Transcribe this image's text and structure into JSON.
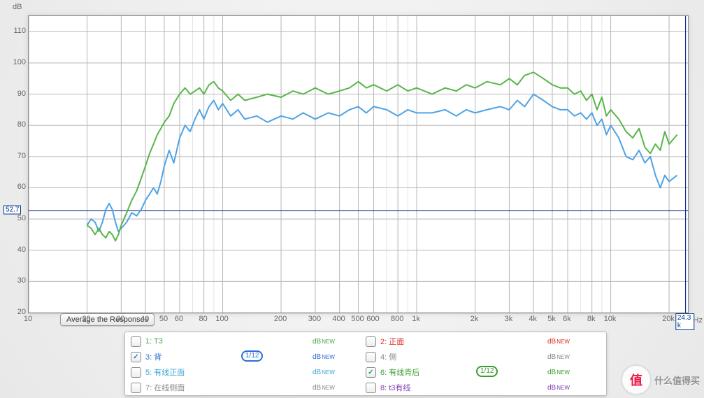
{
  "chart": {
    "type": "line",
    "y_unit": "dB",
    "x_unit": "k Hz",
    "x_scale": "log",
    "xlim_hz": [
      10,
      25000
    ],
    "ylim_db": [
      20,
      115
    ],
    "y_ticks": [
      20,
      30,
      40,
      50,
      60,
      70,
      80,
      90,
      100,
      110
    ],
    "x_ticks": [
      {
        "hz": 10,
        "label": "10"
      },
      {
        "hz": 20,
        "label": "20"
      },
      {
        "hz": 30,
        "label": "30"
      },
      {
        "hz": 40,
        "label": "40"
      },
      {
        "hz": 50,
        "label": "50"
      },
      {
        "hz": 60,
        "label": "60"
      },
      {
        "hz": 80,
        "label": "80"
      },
      {
        "hz": 100,
        "label": "100"
      },
      {
        "hz": 200,
        "label": "200"
      },
      {
        "hz": 300,
        "label": "300"
      },
      {
        "hz": 400,
        "label": "400"
      },
      {
        "hz": 500,
        "label": "500"
      },
      {
        "hz": 600,
        "label": "600"
      },
      {
        "hz": 800,
        "label": "800"
      },
      {
        "hz": 1000,
        "label": "1k"
      },
      {
        "hz": 2000,
        "label": "2k"
      },
      {
        "hz": 3000,
        "label": "3k"
      },
      {
        "hz": 4000,
        "label": "4k"
      },
      {
        "hz": 5000,
        "label": "5k"
      },
      {
        "hz": 6000,
        "label": "6k"
      },
      {
        "hz": 8000,
        "label": "8k"
      },
      {
        "hz": 10000,
        "label": "10k"
      },
      {
        "hz": 20000,
        "label": "20k"
      }
    ],
    "x_minor_ticks_hz": [
      70,
      90,
      150,
      700,
      900,
      1500,
      7000,
      9000,
      15000
    ],
    "grid_color_major": "#b8b8b8",
    "grid_color_minor": "#e5e5e5",
    "background_color": "#ffffff",
    "line_width": 2.0,
    "cursor": {
      "y_db": 52.7,
      "x_hz": 24300,
      "y_label": "52.7",
      "x_label": "24.3 k",
      "color": "#0b2b8a"
    },
    "avg_button_label": "Average the Responses",
    "series": [
      {
        "id": "s3",
        "color": "#4ea3e6",
        "points_hz_db": [
          [
            20,
            48
          ],
          [
            21,
            50
          ],
          [
            22,
            49
          ],
          [
            23,
            46
          ],
          [
            24,
            49
          ],
          [
            25,
            53
          ],
          [
            26,
            55
          ],
          [
            27,
            53
          ],
          [
            28,
            49
          ],
          [
            29,
            46
          ],
          [
            30,
            47
          ],
          [
            32,
            49
          ],
          [
            34,
            52
          ],
          [
            36,
            51
          ],
          [
            38,
            53
          ],
          [
            40,
            56
          ],
          [
            42,
            58
          ],
          [
            44,
            60
          ],
          [
            46,
            58
          ],
          [
            48,
            62
          ],
          [
            50,
            67
          ],
          [
            53,
            72
          ],
          [
            56,
            68
          ],
          [
            60,
            76
          ],
          [
            64,
            80
          ],
          [
            68,
            78
          ],
          [
            72,
            82
          ],
          [
            76,
            85
          ],
          [
            80,
            82
          ],
          [
            85,
            86
          ],
          [
            90,
            88
          ],
          [
            95,
            85
          ],
          [
            100,
            87
          ],
          [
            110,
            83
          ],
          [
            120,
            85
          ],
          [
            130,
            82
          ],
          [
            150,
            83
          ],
          [
            170,
            81
          ],
          [
            200,
            83
          ],
          [
            230,
            82
          ],
          [
            260,
            84
          ],
          [
            300,
            82
          ],
          [
            350,
            84
          ],
          [
            400,
            83
          ],
          [
            450,
            85
          ],
          [
            500,
            86
          ],
          [
            550,
            84
          ],
          [
            600,
            86
          ],
          [
            700,
            85
          ],
          [
            800,
            83
          ],
          [
            900,
            85
          ],
          [
            1000,
            84
          ],
          [
            1200,
            84
          ],
          [
            1400,
            85
          ],
          [
            1600,
            83
          ],
          [
            1800,
            85
          ],
          [
            2000,
            84
          ],
          [
            2300,
            85
          ],
          [
            2700,
            86
          ],
          [
            3000,
            85
          ],
          [
            3300,
            88
          ],
          [
            3600,
            86
          ],
          [
            4000,
            90
          ],
          [
            4500,
            88
          ],
          [
            5000,
            86
          ],
          [
            5500,
            85
          ],
          [
            6000,
            85
          ],
          [
            6500,
            83
          ],
          [
            7000,
            84
          ],
          [
            7500,
            82
          ],
          [
            8000,
            84
          ],
          [
            8500,
            80
          ],
          [
            9000,
            82
          ],
          [
            9500,
            77
          ],
          [
            10000,
            80
          ],
          [
            11000,
            76
          ],
          [
            12000,
            70
          ],
          [
            13000,
            69
          ],
          [
            14000,
            72
          ],
          [
            15000,
            68
          ],
          [
            16000,
            70
          ],
          [
            17000,
            64
          ],
          [
            18000,
            60
          ],
          [
            19000,
            64
          ],
          [
            20000,
            62
          ],
          [
            22000,
            64
          ]
        ]
      },
      {
        "id": "s6",
        "color": "#57b648",
        "points_hz_db": [
          [
            20,
            48
          ],
          [
            21,
            47
          ],
          [
            22,
            45
          ],
          [
            23,
            47
          ],
          [
            24,
            45
          ],
          [
            25,
            44
          ],
          [
            26,
            46
          ],
          [
            27,
            45
          ],
          [
            28,
            43
          ],
          [
            29,
            45
          ],
          [
            30,
            48
          ],
          [
            32,
            52
          ],
          [
            34,
            56
          ],
          [
            36,
            59
          ],
          [
            38,
            63
          ],
          [
            40,
            67
          ],
          [
            42,
            71
          ],
          [
            44,
            74
          ],
          [
            46,
            77
          ],
          [
            48,
            79
          ],
          [
            50,
            81
          ],
          [
            53,
            83
          ],
          [
            56,
            87
          ],
          [
            60,
            90
          ],
          [
            64,
            92
          ],
          [
            68,
            90
          ],
          [
            72,
            91
          ],
          [
            76,
            92
          ],
          [
            80,
            90
          ],
          [
            85,
            93
          ],
          [
            90,
            94
          ],
          [
            95,
            92
          ],
          [
            100,
            91
          ],
          [
            110,
            88
          ],
          [
            120,
            90
          ],
          [
            130,
            88
          ],
          [
            150,
            89
          ],
          [
            170,
            90
          ],
          [
            200,
            89
          ],
          [
            230,
            91
          ],
          [
            260,
            90
          ],
          [
            300,
            92
          ],
          [
            350,
            90
          ],
          [
            400,
            91
          ],
          [
            450,
            92
          ],
          [
            500,
            94
          ],
          [
            550,
            92
          ],
          [
            600,
            93
          ],
          [
            700,
            91
          ],
          [
            800,
            93
          ],
          [
            900,
            91
          ],
          [
            1000,
            92
          ],
          [
            1200,
            90
          ],
          [
            1400,
            92
          ],
          [
            1600,
            91
          ],
          [
            1800,
            93
          ],
          [
            2000,
            92
          ],
          [
            2300,
            94
          ],
          [
            2700,
            93
          ],
          [
            3000,
            95
          ],
          [
            3300,
            93
          ],
          [
            3600,
            96
          ],
          [
            4000,
            97
          ],
          [
            4500,
            95
          ],
          [
            5000,
            93
          ],
          [
            5500,
            92
          ],
          [
            6000,
            92
          ],
          [
            6500,
            90
          ],
          [
            7000,
            91
          ],
          [
            7500,
            88
          ],
          [
            8000,
            90
          ],
          [
            8500,
            85
          ],
          [
            9000,
            89
          ],
          [
            9500,
            83
          ],
          [
            10000,
            85
          ],
          [
            11000,
            82
          ],
          [
            12000,
            78
          ],
          [
            13000,
            76
          ],
          [
            14000,
            79
          ],
          [
            15000,
            73
          ],
          [
            16000,
            71
          ],
          [
            17000,
            74
          ],
          [
            18000,
            72
          ],
          [
            19000,
            78
          ],
          [
            20000,
            74
          ],
          [
            22000,
            77
          ]
        ]
      }
    ]
  },
  "legend": {
    "db_label": "dB",
    "db_badge": "NEW",
    "items": [
      {
        "idx": 1,
        "label": "1: T3",
        "checked": false,
        "color": "#47a447"
      },
      {
        "idx": 2,
        "label": "2: 正面",
        "checked": false,
        "color": "#d9312a"
      },
      {
        "idx": 3,
        "label": "3: 背",
        "checked": true,
        "color": "#2a6fd6",
        "smoothing": "1/12"
      },
      {
        "idx": 4,
        "label": "4: 侧",
        "checked": false,
        "color": "#888888"
      },
      {
        "idx": 5,
        "label": "5: 有线正面",
        "checked": false,
        "color": "#3aa6d0"
      },
      {
        "idx": 6,
        "label": "6: 有线背后",
        "checked": true,
        "color": "#3a9b2f",
        "smoothing": "1/12"
      },
      {
        "idx": 7,
        "label": "7: 在线侧面",
        "checked": false,
        "color": "#888888"
      },
      {
        "idx": 8,
        "label": "8: t3有线",
        "checked": false,
        "color": "#7b3fb0"
      }
    ]
  },
  "watermark": {
    "circle_text": "值",
    "text": "什么值得买"
  }
}
